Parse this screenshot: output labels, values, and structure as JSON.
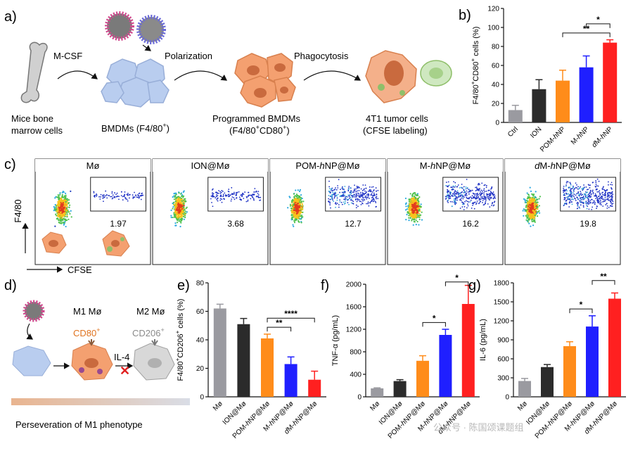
{
  "colors": {
    "grey": "#9a9aa0",
    "black": "#2b2b2b",
    "orange": "#ff8c1a",
    "blue": "#1f1fff",
    "red": "#ff2020",
    "cellBlue": "#b9cdef",
    "cellOrange": "#f4a070",
    "bar": "#e8b89a"
  },
  "panels": {
    "a": "a)",
    "b": "b)",
    "c": "c)",
    "d": "d)",
    "e": "e)",
    "f": "f)",
    "g": "g)"
  },
  "panelA": {
    "label_mcsf": "M-CSF",
    "label_polarization": "Polarization",
    "label_phagocytosis": "Phagocytosis",
    "bone_line1": "Mice bone",
    "bone_line2": "marrow cells",
    "bmdm": "BMDMs (F4/80",
    "bmdm_sup": "+",
    "bmdm_end": ")",
    "prog_line1": "Programmed BMDMs",
    "prog_line2": "(F4/80",
    "prog_sup1": "+",
    "prog_mid": "CD80",
    "prog_sup2": "+",
    "prog_end": ")",
    "tumor_line1": "4T1 tumor cells",
    "tumor_line2": "(CFSE labeling)"
  },
  "panelC": {
    "ylabel": "F4/80",
    "xlabel": "CFSE",
    "plots": [
      {
        "title": "Mø",
        "value": "1.97",
        "density": 0.15
      },
      {
        "title": "ION@Mø",
        "value": "3.68",
        "density": 0.3
      },
      {
        "title": "POM-hNP@Mø",
        "title_parts": [
          "POM-",
          "h",
          "NP@Mø"
        ],
        "value": "12.7",
        "density": 0.7
      },
      {
        "title": "M-hNP@Mø",
        "title_parts": [
          "M-",
          "h",
          "NP@Mø"
        ],
        "value": "16.2",
        "density": 0.85
      },
      {
        "title": "dM-hNP@Mø",
        "title_parts": [
          "d",
          "M-",
          "h",
          "NP@Mø"
        ],
        "value": "19.8",
        "density": 1.0
      }
    ]
  },
  "panelD": {
    "m1": "M1 Mø",
    "m2": "M2 Mø",
    "cd80": "CD80",
    "cd80_sup": "+",
    "cd206": "CD206",
    "cd206_sup": "+",
    "il4": "IL-4",
    "caption": "Perseveration of M1 phenotype"
  },
  "chart_data": [
    {
      "id": "b",
      "type": "bar",
      "title": "",
      "ylabel": "F4/80+CD80+ cells (%)",
      "ylabel_parts": [
        "F4/80",
        "+",
        "CD80",
        "+",
        " cells (%)"
      ],
      "ylim": [
        0,
        120
      ],
      "yticks": [
        0,
        20,
        40,
        60,
        80,
        100,
        120
      ],
      "categories": [
        "Ctrl",
        "ION",
        "POM-hNP",
        "M-hNP",
        "dM-hNP"
      ],
      "values": [
        13,
        35,
        44,
        58,
        84
      ],
      "errors": [
        5,
        10,
        11,
        12,
        3
      ],
      "annotations": [
        {
          "from": 2,
          "to": 4,
          "text": "**"
        },
        {
          "from": 3,
          "to": 4,
          "text": "*"
        }
      ]
    },
    {
      "id": "e",
      "type": "bar",
      "title": "",
      "ylabel": "F4/80+CD206+ cells (%)",
      "ylabel_parts": [
        "F4/80",
        "+",
        "CD206",
        "+",
        " cells (%)"
      ],
      "ylim": [
        0,
        80
      ],
      "yticks": [
        0,
        20,
        40,
        60,
        80
      ],
      "categories": [
        "Mø",
        "ION@Mø",
        "POM-hNP@Mø",
        "M-hNP@Mø",
        "dM-hNP@Mø"
      ],
      "values": [
        62,
        51,
        41,
        23,
        12
      ],
      "errors": [
        3,
        4,
        3,
        5,
        6
      ],
      "annotations": [
        {
          "from": 2,
          "to": 3,
          "text": "**"
        },
        {
          "from": 2,
          "to": 4,
          "text": "****"
        }
      ]
    },
    {
      "id": "f",
      "type": "bar",
      "title": "",
      "ylabel": "TNF-α (pg/mL)",
      "ylabel_parts": [
        "TNF-α (pg/mL)"
      ],
      "ylim": [
        0,
        2000
      ],
      "yticks": [
        0,
        400,
        800,
        1200,
        1600,
        2000
      ],
      "categories": [
        "Mø",
        "ION@Mø",
        "POM-hNP@Mø",
        "M-hNP@Mø",
        "dM-hNP@Mø"
      ],
      "values": [
        150,
        280,
        640,
        1100,
        1650
      ],
      "errors": [
        10,
        25,
        90,
        100,
        330
      ],
      "annotations": [
        {
          "from": 2,
          "to": 3,
          "text": "*"
        },
        {
          "from": 3,
          "to": 4,
          "text": "*"
        }
      ]
    },
    {
      "id": "g",
      "type": "bar",
      "title": "",
      "ylabel": "IL-6 (pg/mL)",
      "ylabel_parts": [
        "IL-6 (pg/mL)"
      ],
      "ylim": [
        0,
        1800
      ],
      "yticks": [
        0,
        300,
        600,
        900,
        1200,
        1500,
        1800
      ],
      "categories": [
        "Mø",
        "ION@Mø",
        "POM-hNP@Mø",
        "M-hNP@Mø",
        "dM-hNP@Mø"
      ],
      "values": [
        250,
        470,
        800,
        1110,
        1550
      ],
      "errors": [
        40,
        40,
        70,
        170,
        90
      ],
      "annotations": [
        {
          "from": 2,
          "to": 3,
          "text": "*"
        },
        {
          "from": 3,
          "to": 4,
          "text": "**"
        }
      ]
    }
  ],
  "watermark": "公众号 · 陈国颂课题组"
}
